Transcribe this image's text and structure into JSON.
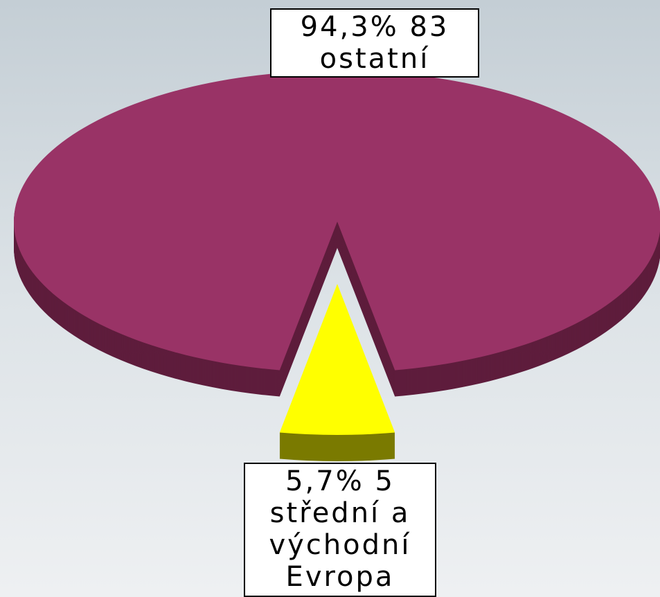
{
  "chart_data": {
    "type": "pie3d",
    "categories": [
      "ostatní",
      "střední a východní Evropa"
    ],
    "values": [
      94.3,
      5.7
    ],
    "value_labels": [
      "94,3%",
      "5,7%"
    ],
    "counts": [
      83,
      5
    ],
    "colors": [
      "#993366",
      "#ffff00"
    ],
    "side_colors": [
      "#5e1d3c",
      "#7a7a00"
    ],
    "exploded": [
      false,
      true
    ]
  }
}
